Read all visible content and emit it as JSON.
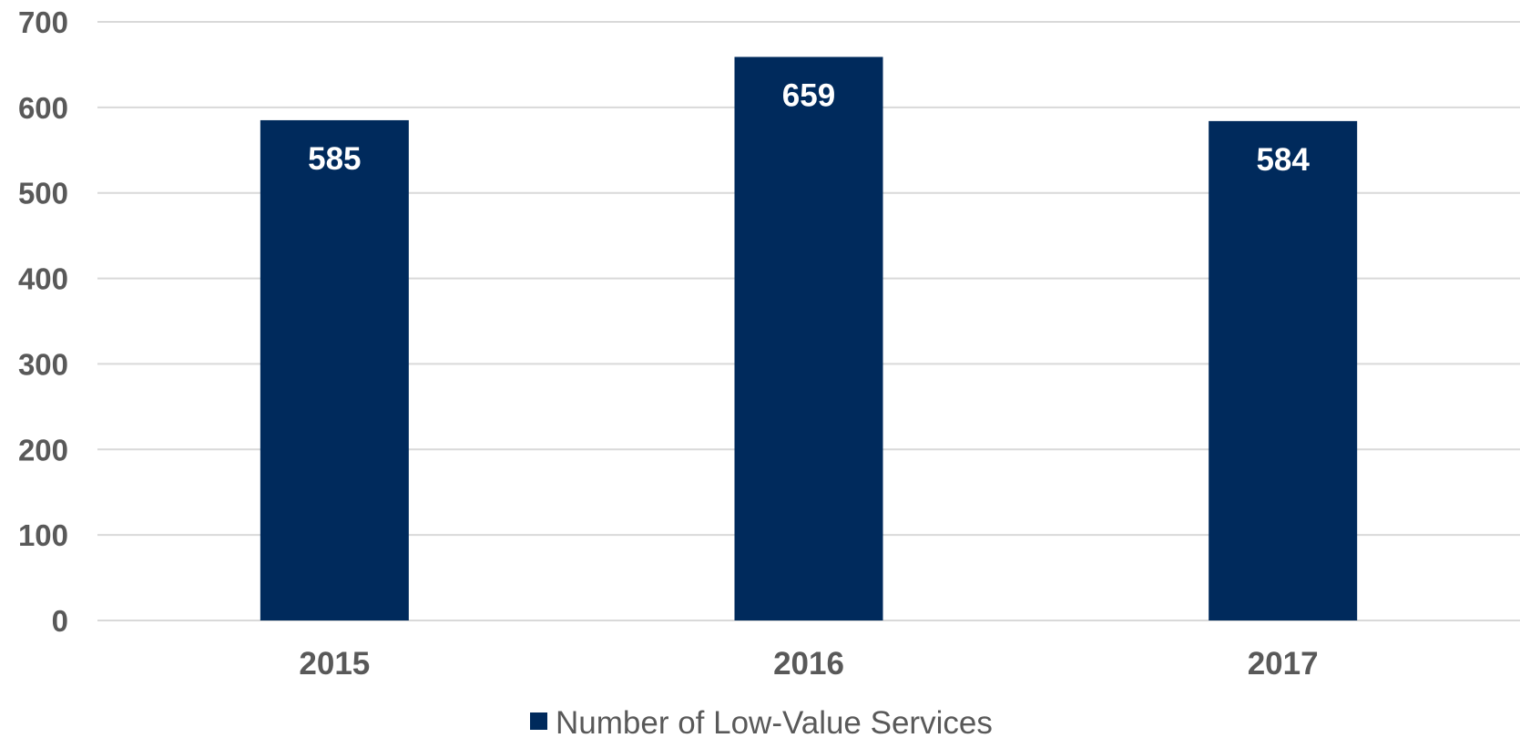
{
  "chart_data": {
    "type": "bar",
    "categories": [
      "2015",
      "2016",
      "2017"
    ],
    "series": [
      {
        "name": "Number of Low-Value Services",
        "values": [
          585,
          659,
          584
        ],
        "color": "#002a5c"
      }
    ],
    "ylim": [
      0,
      700
    ],
    "yticks": [
      0,
      100,
      200,
      300,
      400,
      500,
      600,
      700
    ],
    "grid": true,
    "legend_position": "bottom",
    "data_labels": true,
    "title": "",
    "xlabel": "",
    "ylabel": ""
  }
}
